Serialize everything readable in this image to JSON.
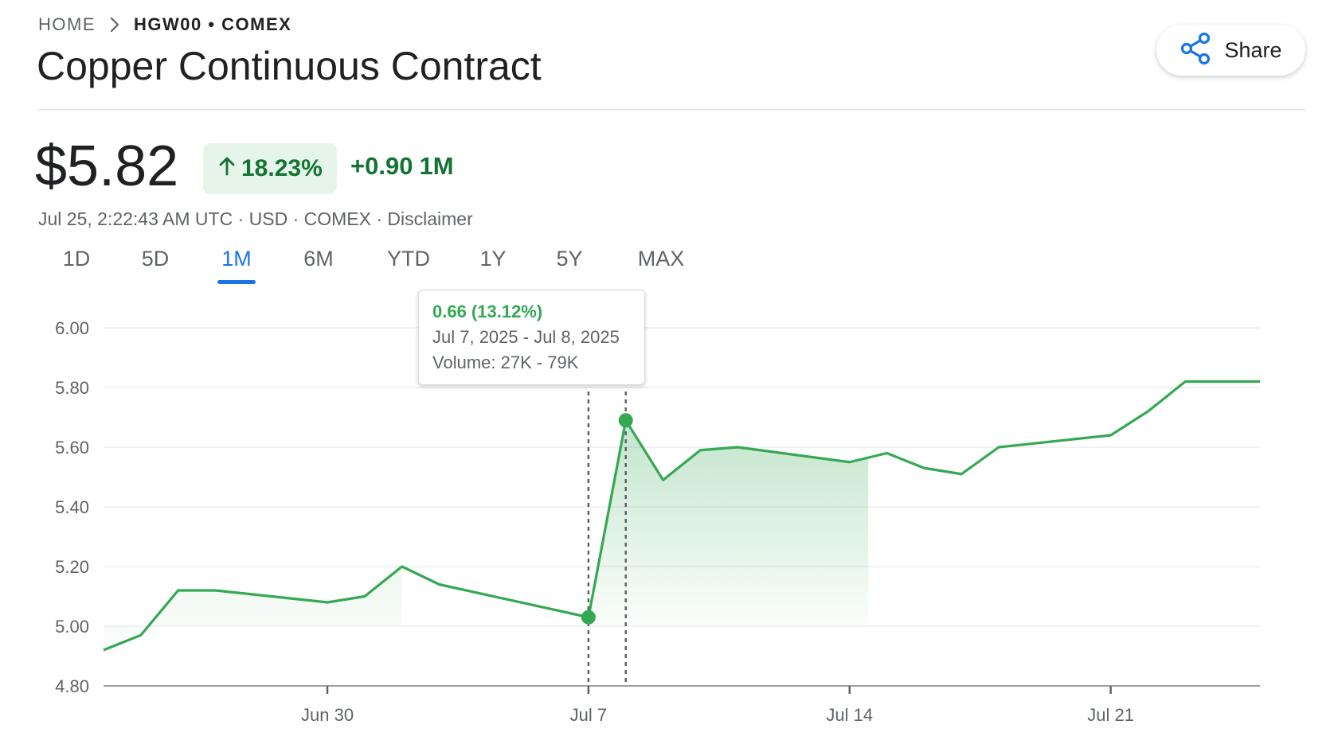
{
  "breadcrumb": {
    "home": "HOME",
    "current": "HGW00 • COMEX"
  },
  "title": "Copper Continuous Contract",
  "share_label": "Share",
  "quote": {
    "price": "$5.82",
    "percent_change": "18.23%",
    "change": "+0.90",
    "period": "1M",
    "meta": "Jul 25, 2:22:43 AM UTC · USD · COMEX · Disclaimer"
  },
  "tabs": [
    "1D",
    "5D",
    "1M",
    "6M",
    "YTD",
    "1Y",
    "5Y",
    "MAX"
  ],
  "active_tab": "1M",
  "tooltip": {
    "change": "0.66 (13.12%)",
    "range": "Jul 7, 2025 - Jul 8, 2025",
    "volume": "Volume: 27K - 79K"
  },
  "colors": {
    "positive": "#34a853",
    "positive_text": "#137333",
    "accent": "#1a73e8",
    "grid": "#e8eaed"
  },
  "chart_data": {
    "type": "line",
    "ylim": [
      4.8,
      6.0
    ],
    "yticks": [
      4.8,
      5.0,
      5.2,
      5.4,
      5.6,
      5.8,
      6.0
    ],
    "ytick_labels": [
      "4.80",
      "5.00",
      "5.20",
      "5.40",
      "5.60",
      "5.80",
      "6.00"
    ],
    "xlim": [
      "2025-06-24",
      "2025-07-25"
    ],
    "xticks": [
      "2025-06-30",
      "2025-07-07",
      "2025-07-14",
      "2025-07-21"
    ],
    "xtick_labels": [
      "Jun 30",
      "Jul 7",
      "Jul 14",
      "Jul 21"
    ],
    "series": [
      {
        "points": [
          [
            "2025-06-24",
            4.92
          ],
          [
            "2025-06-25",
            4.97
          ],
          [
            "2025-06-26",
            5.12
          ],
          [
            "2025-06-27",
            5.12
          ],
          [
            "2025-06-30",
            5.08
          ],
          [
            "2025-07-01",
            5.1
          ],
          [
            "2025-07-02",
            5.2
          ],
          [
            "2025-07-03",
            5.14
          ],
          [
            "2025-07-07",
            5.03
          ],
          [
            "2025-07-08",
            5.69
          ],
          [
            "2025-07-09",
            5.49
          ],
          [
            "2025-07-10",
            5.59
          ],
          [
            "2025-07-11",
            5.6
          ],
          [
            "2025-07-14",
            5.55
          ],
          [
            "2025-07-15",
            5.58
          ],
          [
            "2025-07-16",
            5.53
          ],
          [
            "2025-07-17",
            5.51
          ],
          [
            "2025-07-18",
            5.6
          ],
          [
            "2025-07-21",
            5.64
          ],
          [
            "2025-07-22",
            5.72
          ],
          [
            "2025-07-23",
            5.82
          ],
          [
            "2025-07-24",
            5.82
          ],
          [
            "2025-07-25",
            5.82
          ]
        ]
      }
    ],
    "selection": {
      "start": "2025-07-07",
      "end": "2025-07-08",
      "start_value": 5.03,
      "end_value": 5.69
    },
    "grid": true
  }
}
